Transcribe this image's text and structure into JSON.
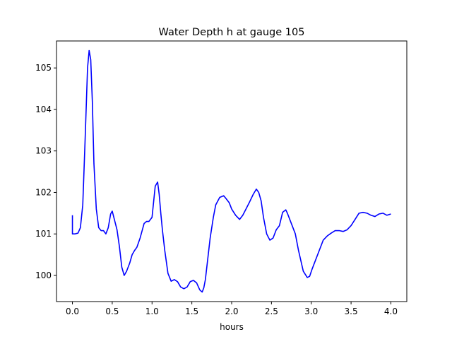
{
  "chart_data": {
    "type": "line",
    "title": "Water Depth h at gauge 105",
    "xlabel": "hours",
    "ylabel": "",
    "xlim": [
      -0.2,
      4.2
    ],
    "ylim": [
      99.37,
      105.65
    ],
    "xticks": [
      0.0,
      0.5,
      1.0,
      1.5,
      2.0,
      2.5,
      3.0,
      3.5,
      4.0
    ],
    "xtick_labels": [
      "0.0",
      "0.5",
      "1.0",
      "1.5",
      "2.0",
      "2.5",
      "3.0",
      "3.5",
      "4.0"
    ],
    "yticks": [
      100,
      101,
      102,
      103,
      104,
      105
    ],
    "ytick_labels": [
      "100",
      "101",
      "102",
      "103",
      "104",
      "105"
    ],
    "grid": false,
    "series": [
      {
        "color": "#0000ff",
        "x": [
          0.0,
          0.0,
          0.03,
          0.07,
          0.1,
          0.13,
          0.16,
          0.19,
          0.21,
          0.23,
          0.25,
          0.27,
          0.3,
          0.33,
          0.36,
          0.39,
          0.42,
          0.45,
          0.48,
          0.5,
          0.52,
          0.54,
          0.56,
          0.59,
          0.62,
          0.65,
          0.68,
          0.7,
          0.72,
          0.75,
          0.78,
          0.81,
          0.85,
          0.9,
          0.93,
          0.96,
          1.0,
          1.04,
          1.07,
          1.09,
          1.11,
          1.13,
          1.16,
          1.2,
          1.24,
          1.28,
          1.32,
          1.36,
          1.4,
          1.44,
          1.48,
          1.52,
          1.56,
          1.6,
          1.63,
          1.65,
          1.67,
          1.7,
          1.73,
          1.77,
          1.8,
          1.85,
          1.9,
          1.93,
          1.97,
          2.0,
          2.05,
          2.1,
          2.14,
          2.18,
          2.22,
          2.27,
          2.31,
          2.34,
          2.37,
          2.4,
          2.44,
          2.48,
          2.52,
          2.56,
          2.6,
          2.64,
          2.68,
          2.7,
          2.73,
          2.76,
          2.8,
          2.84,
          2.9,
          2.95,
          2.98,
          3.01,
          3.05,
          3.1,
          3.15,
          3.2,
          3.25,
          3.3,
          3.35,
          3.4,
          3.45,
          3.5,
          3.55,
          3.6,
          3.65,
          3.7,
          3.75,
          3.8,
          3.85,
          3.9,
          3.95,
          4.0
        ],
        "y": [
          101.45,
          101.0,
          101.0,
          101.02,
          101.15,
          101.7,
          103.3,
          105.0,
          105.42,
          105.2,
          104.2,
          102.7,
          101.6,
          101.15,
          101.08,
          101.08,
          101.0,
          101.15,
          101.48,
          101.55,
          101.4,
          101.25,
          101.1,
          100.7,
          100.2,
          100.0,
          100.1,
          100.2,
          100.3,
          100.5,
          100.6,
          100.68,
          100.9,
          101.25,
          101.3,
          101.3,
          101.4,
          102.15,
          102.25,
          101.95,
          101.5,
          101.1,
          100.6,
          100.05,
          99.86,
          99.9,
          99.85,
          99.72,
          99.68,
          99.72,
          99.85,
          99.88,
          99.82,
          99.65,
          99.6,
          99.7,
          99.9,
          100.4,
          100.9,
          101.4,
          101.7,
          101.88,
          101.92,
          101.85,
          101.75,
          101.6,
          101.45,
          101.35,
          101.45,
          101.6,
          101.75,
          101.95,
          102.08,
          102.0,
          101.8,
          101.4,
          101.0,
          100.85,
          100.9,
          101.1,
          101.2,
          101.52,
          101.58,
          101.5,
          101.35,
          101.2,
          101.0,
          100.6,
          100.1,
          99.95,
          99.98,
          100.15,
          100.35,
          100.6,
          100.85,
          100.95,
          101.02,
          101.08,
          101.08,
          101.06,
          101.1,
          101.2,
          101.35,
          101.5,
          101.52,
          101.5,
          101.45,
          101.42,
          101.48,
          101.5,
          101.45,
          101.48
        ]
      }
    ]
  }
}
